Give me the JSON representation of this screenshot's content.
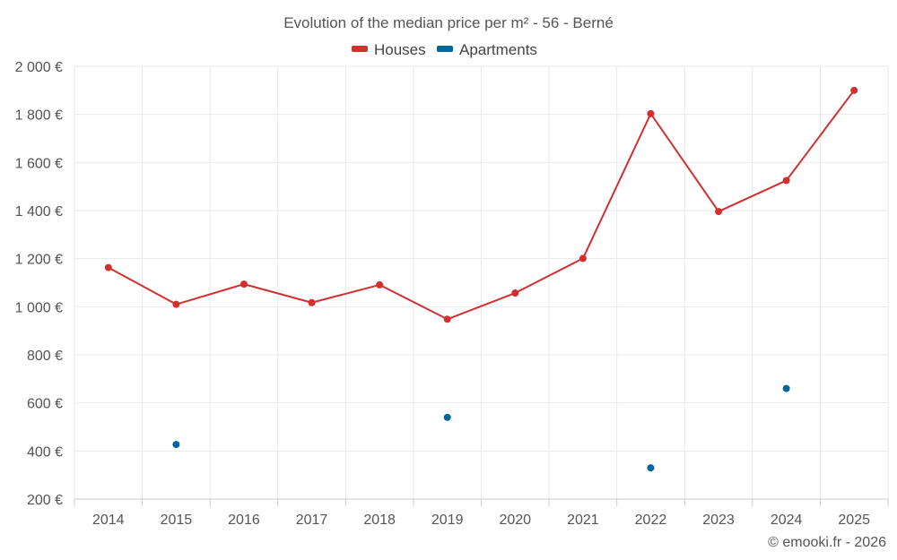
{
  "chart_data": {
    "type": "line",
    "title": "Evolution of the median price per m² - 56 - Berné",
    "categories": [
      "2014",
      "2015",
      "2016",
      "2017",
      "2018",
      "2019",
      "2020",
      "2021",
      "2022",
      "2023",
      "2024",
      "2025"
    ],
    "series": [
      {
        "name": "Houses",
        "color": "#d32f2f",
        "values": [
          1163,
          1010,
          1094,
          1017,
          1091,
          948,
          1057,
          1201,
          1803,
          1396,
          1525,
          1900
        ]
      },
      {
        "name": "Apartments",
        "color": "#01669b",
        "values": [
          null,
          427,
          null,
          null,
          null,
          540,
          null,
          null,
          330,
          null,
          660,
          null
        ]
      }
    ],
    "y_ticks": [
      200,
      400,
      600,
      800,
      1000,
      1200,
      1400,
      1600,
      1800,
      2000
    ],
    "y_tick_labels": [
      "200 €",
      "400 €",
      "600 €",
      "800 €",
      "1 000 €",
      "1 200 €",
      "1 400 €",
      "1 600 €",
      "1 800 €",
      "2 000 €"
    ],
    "ylim": [
      200,
      2000
    ],
    "xlabel": "",
    "ylabel": "",
    "grid": true,
    "legend": "top-center"
  },
  "credit": "© emooki.fr - 2026"
}
